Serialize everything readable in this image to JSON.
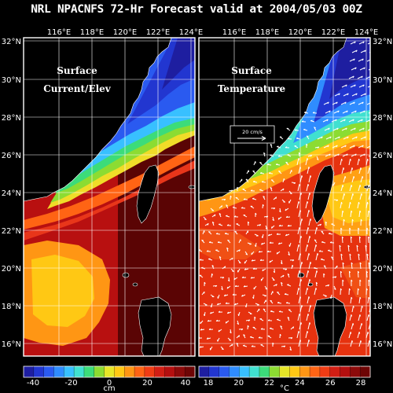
{
  "title": "NRL NPACNFS 72-Hr Forecast valid at 2004/05/03 00Z",
  "lon_ticks": [
    "116°E",
    "118°E",
    "120°E",
    "122°E",
    "124°E"
  ],
  "lat_ticks": [
    "32°N",
    "30°N",
    "28°N",
    "26°N",
    "24°N",
    "22°N",
    "20°N",
    "18°N",
    "16°N"
  ],
  "panels": {
    "left": {
      "line1": "Surface",
      "line2": "Current/Elev"
    },
    "right": {
      "line1": "Surface",
      "line2": "Temperature",
      "vector_ref_label": "20 cm/s"
    }
  },
  "colorbars": {
    "left": {
      "ticks": [
        "-40",
        "-20",
        "0",
        "20",
        "40"
      ],
      "unit": "cm"
    },
    "right": {
      "ticks": [
        "18",
        "20",
        "22",
        "24",
        "26",
        "28"
      ],
      "unit": "°C"
    }
  },
  "colors": {
    "background": "#000000",
    "land": "#000000",
    "frame": "#ffffff",
    "scale": [
      "#1e1ea0",
      "#2236d0",
      "#2a5af0",
      "#2f8cff",
      "#38c0ff",
      "#40e0d0",
      "#3cdc7a",
      "#8cdc32",
      "#e6e628",
      "#ffc814",
      "#ff9614",
      "#ff6414",
      "#f03c14",
      "#d21e14",
      "#b40f0f",
      "#8c0a0a",
      "#6e0505"
    ]
  }
}
